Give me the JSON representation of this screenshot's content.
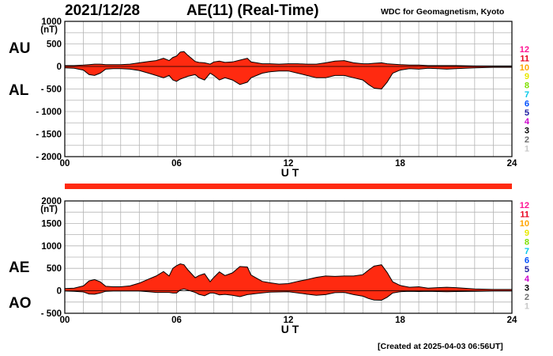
{
  "header": {
    "date": "2021/12/28",
    "title": "AE(11) (Real-Time)",
    "organization": "WDC for Geomagnetism, Kyoto"
  },
  "footer": {
    "created": "[Created at 2025-04-03 06:56UT]"
  },
  "colors": {
    "fill": "#ff2a10",
    "outline": "#000000",
    "grid": "#b4b4b4",
    "coverage_bar": "#ff2a10"
  },
  "station_legend": [
    {
      "label": "12",
      "color": "#ff1493"
    },
    {
      "label": "11",
      "color": "#e8001f"
    },
    {
      "label": "10",
      "color": "#ffa500"
    },
    {
      "label": "9",
      "color": "#e8e800"
    },
    {
      "label": "8",
      "color": "#7fe000"
    },
    {
      "label": "7",
      "color": "#00c8e8"
    },
    {
      "label": "6",
      "color": "#0050ff"
    },
    {
      "label": "5",
      "color": "#1a1aa0"
    },
    {
      "label": "4",
      "color": "#cc00cc"
    },
    {
      "label": "3",
      "color": "#000000"
    },
    {
      "label": "2",
      "color": "#707070"
    },
    {
      "label": "1",
      "color": "#c8c8c8"
    }
  ],
  "chart_data": [
    {
      "type": "area",
      "upper_label": "AU",
      "lower_label": "AL",
      "unit_label": "(nT)",
      "xlabel": "U T",
      "xlim": [
        0,
        24
      ],
      "xticks": [
        0,
        6,
        12,
        18,
        24
      ],
      "xtick_labels": [
        "00",
        "06",
        "12",
        "18",
        "24"
      ],
      "ylim": [
        -2000,
        1000
      ],
      "yticks": [
        1000,
        500,
        0,
        -500,
        -1000,
        -1500,
        -2000
      ],
      "ytick_labels": [
        "1000",
        "500",
        "0",
        "- 500",
        "- 1000",
        "- 1500",
        "- 2000"
      ],
      "grid": true,
      "x": [
        0,
        0.5,
        1,
        1.3,
        1.6,
        1.9,
        2.2,
        2.6,
        3,
        3.5,
        4,
        4.5,
        4.9,
        5.3,
        5.6,
        5.8,
        6,
        6.2,
        6.4,
        6.6,
        6.8,
        7,
        7.2,
        7.5,
        7.8,
        8,
        8.3,
        8.6,
        9,
        9.4,
        9.8,
        10,
        10.3,
        10.6,
        11,
        11.5,
        12,
        12.5,
        13,
        13.5,
        14,
        14.5,
        15,
        15.5,
        16,
        16.3,
        16.6,
        17,
        17.3,
        17.6,
        18,
        18.5,
        19,
        19.5,
        20,
        20.5,
        21,
        22,
        23,
        24
      ],
      "au": [
        20,
        20,
        30,
        40,
        50,
        50,
        40,
        40,
        40,
        50,
        80,
        110,
        130,
        180,
        130,
        200,
        230,
        320,
        330,
        250,
        180,
        110,
        90,
        80,
        50,
        100,
        120,
        90,
        100,
        140,
        180,
        100,
        80,
        60,
        60,
        50,
        60,
        60,
        50,
        50,
        80,
        120,
        130,
        80,
        60,
        60,
        70,
        80,
        60,
        50,
        40,
        30,
        30,
        20,
        20,
        20,
        20,
        10,
        10,
        10
      ],
      "al": [
        -30,
        -40,
        -80,
        -180,
        -200,
        -150,
        -60,
        -50,
        -50,
        -60,
        -90,
        -150,
        -200,
        -250,
        -200,
        -300,
        -330,
        -280,
        -250,
        -220,
        -200,
        -180,
        -250,
        -300,
        -150,
        -200,
        -300,
        -250,
        -300,
        -400,
        -350,
        -250,
        -200,
        -150,
        -120,
        -100,
        -100,
        -150,
        -200,
        -250,
        -250,
        -200,
        -200,
        -250,
        -300,
        -400,
        -480,
        -500,
        -350,
        -150,
        -80,
        -50,
        -60,
        -40,
        -50,
        -60,
        -50,
        -30,
        -20,
        -20
      ]
    },
    {
      "type": "area",
      "upper_label": "AE",
      "lower_label": "AO",
      "unit_label": "(nT)",
      "xlabel": "U T",
      "xlim": [
        0,
        24
      ],
      "xticks": [
        0,
        6,
        12,
        18,
        24
      ],
      "xtick_labels": [
        "00",
        "06",
        "12",
        "18",
        "24"
      ],
      "ylim": [
        -500,
        2000
      ],
      "yticks": [
        2000,
        1500,
        1000,
        500,
        0,
        -500
      ],
      "ytick_labels": [
        "2000",
        "1500",
        "1000",
        "500",
        "0",
        "- 500"
      ],
      "grid": true,
      "x": [
        0,
        0.5,
        1,
        1.3,
        1.6,
        1.9,
        2.2,
        2.6,
        3,
        3.5,
        4,
        4.5,
        4.9,
        5.3,
        5.6,
        5.8,
        6,
        6.2,
        6.4,
        6.6,
        6.8,
        7,
        7.2,
        7.5,
        7.8,
        8,
        8.3,
        8.6,
        9,
        9.4,
        9.8,
        10,
        10.3,
        10.6,
        11,
        11.5,
        12,
        12.5,
        13,
        13.5,
        14,
        14.5,
        15,
        15.5,
        16,
        16.3,
        16.6,
        17,
        17.3,
        17.6,
        18,
        18.5,
        19,
        19.5,
        20,
        20.5,
        21,
        22,
        23,
        24
      ],
      "ae": [
        50,
        60,
        110,
        220,
        250,
        200,
        100,
        90,
        90,
        110,
        170,
        260,
        330,
        430,
        330,
        500,
        560,
        600,
        580,
        470,
        380,
        290,
        340,
        380,
        200,
        300,
        420,
        340,
        400,
        540,
        530,
        350,
        280,
        210,
        180,
        150,
        160,
        210,
        250,
        300,
        330,
        320,
        330,
        330,
        360,
        460,
        550,
        580,
        410,
        200,
        120,
        80,
        90,
        60,
        70,
        80,
        70,
        40,
        30,
        30
      ],
      "ao": [
        -5,
        -10,
        -25,
        -70,
        -75,
        -50,
        -10,
        -5,
        -5,
        -5,
        -5,
        -20,
        -35,
        -35,
        -35,
        -50,
        -50,
        20,
        40,
        15,
        -10,
        -35,
        -80,
        -110,
        -50,
        -50,
        -90,
        -80,
        -100,
        -130,
        -85,
        -75,
        -60,
        -45,
        -30,
        -25,
        -20,
        -45,
        -75,
        -100,
        -85,
        -40,
        -35,
        -85,
        -120,
        -170,
        -205,
        -210,
        -145,
        -50,
        -20,
        -10,
        -15,
        -10,
        -15,
        -20,
        -15,
        -10,
        -5,
        -5
      ]
    }
  ]
}
